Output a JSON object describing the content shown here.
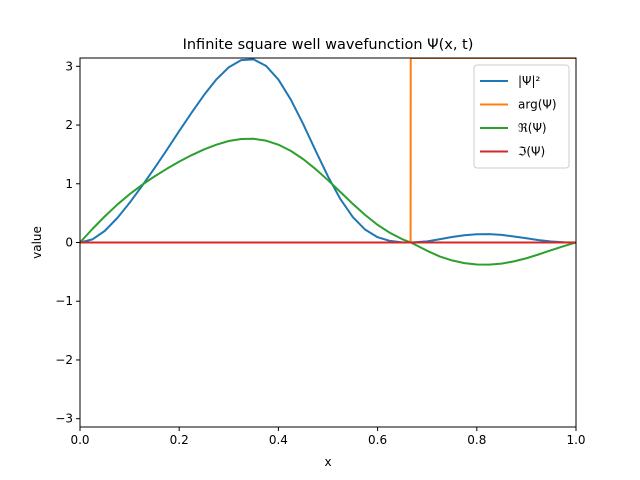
{
  "chart_data": {
    "type": "line",
    "title": "Infinite square well wavefunction Ψ(x, t)",
    "xlabel": "x",
    "ylabel": "value",
    "xlim": [
      0,
      1
    ],
    "ylim": [
      -3.14159,
      3.14159
    ],
    "x_ticks": [
      "0.0",
      "0.2",
      "0.4",
      "0.6",
      "0.8",
      "1.0"
    ],
    "y_ticks": [
      "−3",
      "−2",
      "−1",
      "0",
      "1",
      "2",
      "3"
    ],
    "grid": false,
    "legend_position": "top-right",
    "series": [
      {
        "name": "|Ψ|²",
        "color": "#1f77b4",
        "x": [
          0,
          0.025,
          0.05,
          0.075,
          0.1,
          0.125,
          0.15,
          0.175,
          0.2,
          0.225,
          0.25,
          0.275,
          0.3,
          0.325,
          0.35,
          0.375,
          0.4,
          0.425,
          0.45,
          0.475,
          0.5,
          0.525,
          0.55,
          0.575,
          0.6,
          0.625,
          0.65,
          0.667,
          0.7,
          0.725,
          0.75,
          0.775,
          0.8,
          0.825,
          0.85,
          0.875,
          0.9,
          0.925,
          0.95,
          0.975,
          1
        ],
        "y": [
          0,
          0.053,
          0.198,
          0.415,
          0.676,
          0.962,
          1.264,
          1.576,
          1.897,
          2.211,
          2.511,
          2.777,
          2.984,
          3.105,
          3.118,
          3.008,
          2.774,
          2.434,
          2.016,
          1.564,
          1.125,
          0.739,
          0.433,
          0.219,
          0.09,
          0.027,
          0.003,
          0,
          0.02,
          0.056,
          0.093,
          0.123,
          0.14,
          0.142,
          0.129,
          0.103,
          0.072,
          0.041,
          0.017,
          0.004,
          0
        ]
      },
      {
        "name": "arg(Ψ)",
        "color": "#ff7f0e",
        "x": [
          0,
          0.6665,
          0.6668,
          1
        ],
        "y": [
          0,
          0,
          3.14159,
          3.14159
        ]
      },
      {
        "name": "ℜ(Ψ)",
        "color": "#2ca02c",
        "x": [
          0,
          0.025,
          0.05,
          0.075,
          0.1,
          0.125,
          0.15,
          0.175,
          0.2,
          0.225,
          0.25,
          0.275,
          0.3,
          0.325,
          0.35,
          0.375,
          0.4,
          0.425,
          0.45,
          0.475,
          0.5,
          0.525,
          0.55,
          0.575,
          0.6,
          0.625,
          0.65,
          0.667,
          0.7,
          0.725,
          0.75,
          0.775,
          0.8,
          0.825,
          0.85,
          0.875,
          0.9,
          0.925,
          0.95,
          0.975,
          1
        ],
        "y": [
          0,
          0.23,
          0.445,
          0.644,
          0.822,
          0.981,
          1.124,
          1.255,
          1.377,
          1.487,
          1.585,
          1.666,
          1.728,
          1.762,
          1.766,
          1.734,
          1.666,
          1.56,
          1.42,
          1.25,
          1.061,
          0.86,
          0.658,
          0.468,
          0.3,
          0.164,
          0.055,
          0,
          -0.141,
          -0.237,
          -0.305,
          -0.351,
          -0.374,
          -0.377,
          -0.359,
          -0.321,
          -0.268,
          -0.202,
          -0.131,
          -0.063,
          0
        ]
      },
      {
        "name": "ℑ(Ψ)",
        "color": "#d62728",
        "x": [
          0,
          1
        ],
        "y": [
          0,
          0
        ]
      }
    ]
  }
}
